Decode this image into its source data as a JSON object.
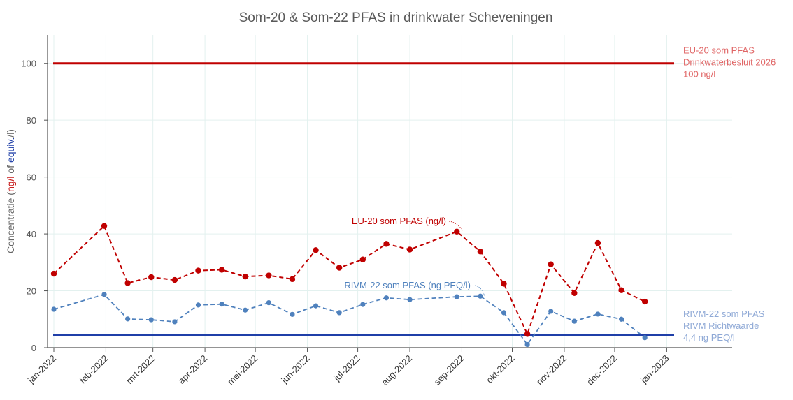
{
  "chart_data": {
    "type": "line",
    "title": "Som-20 & Som-22 PFAS in drinkwater Scheveningen",
    "ylabel_parts": [
      {
        "text": "Concentratie (",
        "color": "#666666"
      },
      {
        "text": "ng/l",
        "color": "#c00000"
      },
      {
        "text": " of ",
        "color": "#666666"
      },
      {
        "text": "equiv.",
        "color": "#1f3fa8"
      },
      {
        "text": "/l)",
        "color": "#666666"
      }
    ],
    "ylim": [
      0,
      110
    ],
    "yticks": [
      0,
      20,
      40,
      60,
      80,
      100
    ],
    "grid": true,
    "x_ticks": [
      "jan-2022",
      "feb-2022",
      "mrt-2022",
      "apr-2022",
      "mei-2022",
      "jun-2022",
      "jul-2022",
      "aug-2022",
      "sep-2022",
      "okt-2022",
      "nov-2022",
      "dec-2022",
      "jan-2023"
    ],
    "x_tick_dates": [
      "2022-01-01",
      "2022-02-01",
      "2022-03-01",
      "2022-04-01",
      "2022-05-01",
      "2022-06-01",
      "2022-07-01",
      "2022-08-01",
      "2022-09-01",
      "2022-10-01",
      "2022-11-01",
      "2022-12-01",
      "2023-01-01"
    ],
    "xlim": [
      "2022-01-01",
      "2023-01-15"
    ],
    "series": [
      {
        "name": "EU-20 som PFAS (ng/l)",
        "color": "#c00000",
        "points": [
          {
            "x": "2022-01-01",
            "y": 26
          },
          {
            "x": "2022-01-31",
            "y": 42.8
          },
          {
            "x": "2022-02-14",
            "y": 22.7
          },
          {
            "x": "2022-02-28",
            "y": 24.8
          },
          {
            "x": "2022-03-14",
            "y": 23.8
          },
          {
            "x": "2022-03-28",
            "y": 27.1
          },
          {
            "x": "2022-04-11",
            "y": 27.4
          },
          {
            "x": "2022-04-25",
            "y": 25
          },
          {
            "x": "2022-05-09",
            "y": 25.4
          },
          {
            "x": "2022-05-23",
            "y": 24.1
          },
          {
            "x": "2022-06-06",
            "y": 34.3
          },
          {
            "x": "2022-06-20",
            "y": 28.1
          },
          {
            "x": "2022-07-04",
            "y": 31
          },
          {
            "x": "2022-07-18",
            "y": 36.5
          },
          {
            "x": "2022-08-01",
            "y": 34.5
          },
          {
            "x": "2022-08-29",
            "y": 40.8
          },
          {
            "x": "2022-09-12",
            "y": 33.8
          },
          {
            "x": "2022-09-26",
            "y": 22.5
          },
          {
            "x": "2022-10-10",
            "y": 4.8
          },
          {
            "x": "2022-10-24",
            "y": 29.3
          },
          {
            "x": "2022-11-07",
            "y": 19.2
          },
          {
            "x": "2022-11-21",
            "y": 36.8
          },
          {
            "x": "2022-12-05",
            "y": 20.2
          },
          {
            "x": "2022-12-19",
            "y": 16.2
          }
        ]
      },
      {
        "name": "RIVM-22 som PFAS (ng PEQ/l)",
        "color": "#4f81bd",
        "points": [
          {
            "x": "2022-01-01",
            "y": 13.5
          },
          {
            "x": "2022-01-31",
            "y": 18.7
          },
          {
            "x": "2022-02-14",
            "y": 10.1
          },
          {
            "x": "2022-02-28",
            "y": 9.8
          },
          {
            "x": "2022-03-14",
            "y": 9.1
          },
          {
            "x": "2022-03-28",
            "y": 15
          },
          {
            "x": "2022-04-11",
            "y": 15.3
          },
          {
            "x": "2022-04-25",
            "y": 13.2
          },
          {
            "x": "2022-05-09",
            "y": 15.8
          },
          {
            "x": "2022-05-23",
            "y": 11.7
          },
          {
            "x": "2022-06-06",
            "y": 14.7
          },
          {
            "x": "2022-06-20",
            "y": 12.3
          },
          {
            "x": "2022-07-04",
            "y": 15.2
          },
          {
            "x": "2022-07-18",
            "y": 17.5
          },
          {
            "x": "2022-08-01",
            "y": 16.9
          },
          {
            "x": "2022-08-29",
            "y": 17.9
          },
          {
            "x": "2022-09-12",
            "y": 18.1
          },
          {
            "x": "2022-09-26",
            "y": 12.3
          },
          {
            "x": "2022-10-10",
            "y": 1.1
          },
          {
            "x": "2022-10-24",
            "y": 12.8
          },
          {
            "x": "2022-11-07",
            "y": 9.3
          },
          {
            "x": "2022-11-21",
            "y": 11.8
          },
          {
            "x": "2022-12-05",
            "y": 10
          },
          {
            "x": "2022-12-19",
            "y": 3.5
          }
        ]
      }
    ],
    "reference_lines": [
      {
        "y": 100,
        "color": "#c00000",
        "label_lines": [
          "EU-20 som PFAS",
          "Drinkwaterbesluit 2026",
          "100 ng/l"
        ],
        "label_color": "#e06666"
      },
      {
        "y": 4.4,
        "color": "#1f3fa8",
        "label_lines": [
          "RIVM-22 som PFAS",
          "RIVM Richtwaarde",
          "4,4 ng PEQ/l"
        ],
        "label_color": "#8fa9d6"
      }
    ],
    "series_labels": [
      {
        "text": "EU-20 som PFAS (ng/l)",
        "color": "#c00000",
        "series_index": 0,
        "point_index": 15
      },
      {
        "text": "RIVM-22 som PFAS (ng PEQ/l)",
        "color": "#4f81bd",
        "series_index": 1,
        "point_index": 16
      }
    ]
  }
}
